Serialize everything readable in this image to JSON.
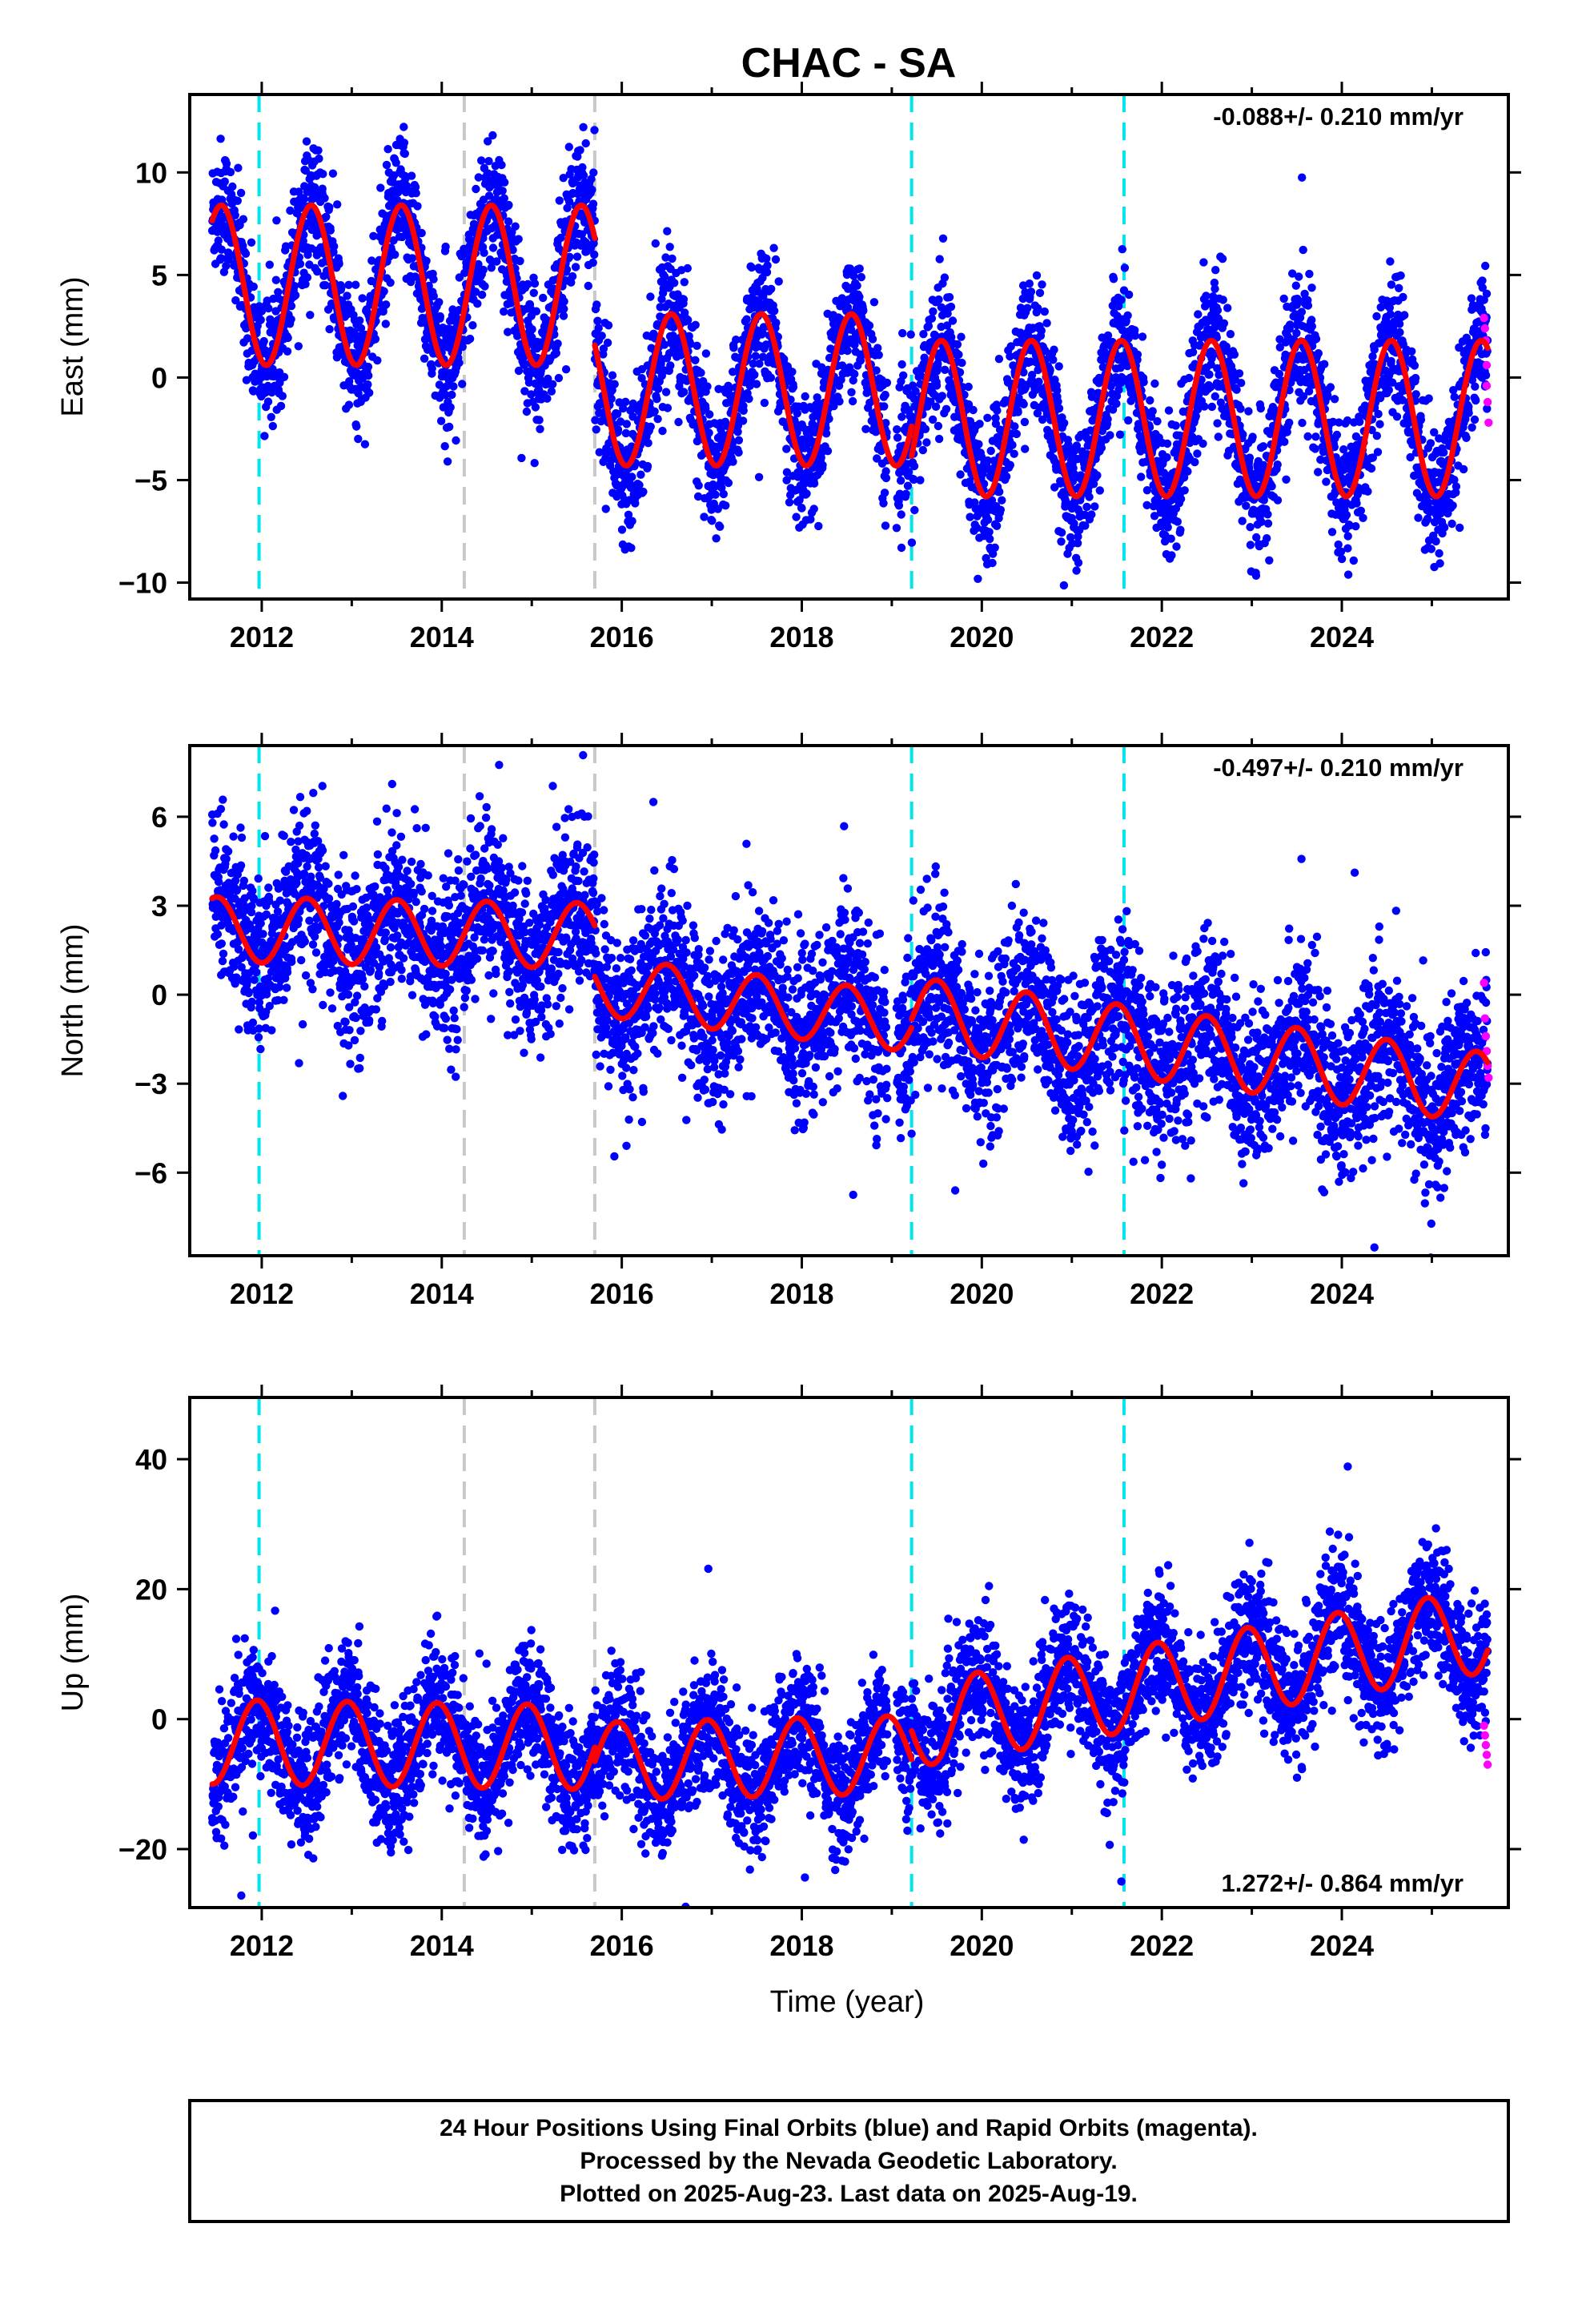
{
  "chart_data": {
    "type": "scatter",
    "title": "CHAC - SA",
    "xlabel": "Time (year)",
    "xlim": [
      2011.2,
      2025.85
    ],
    "x_ticks": [
      "2012",
      "2014",
      "2016",
      "2018",
      "2020",
      "2022",
      "2024"
    ],
    "x_tick_values": [
      2012,
      2014,
      2016,
      2018,
      2020,
      2022,
      2024
    ],
    "colors": {
      "final_orbits": "#0000ff",
      "rapid_orbits": "#ff00ff",
      "model": "#ff0000",
      "equipment_change": "#00e5ee",
      "antenna_change": "#c8c8c8"
    },
    "event_lines": {
      "cyan": [
        2011.97,
        2019.22,
        2021.58
      ],
      "gray": [
        2014.25,
        2015.7
      ]
    },
    "panels": [
      {
        "name": "east",
        "ylabel": "East (mm)",
        "ylim": [
          -10.8,
          13.8
        ],
        "y_ticks": [
          "10",
          "5",
          "0",
          "−5",
          "−10"
        ],
        "y_tick_values": [
          10,
          5,
          0,
          -5,
          -10
        ],
        "rate_text": "-0.088+/- 0.210 mm/yr",
        "rate_position": "top-right",
        "model": {
          "segments": [
            {
              "start": 2011.45,
              "end": 2015.7,
              "offset": 4.5,
              "trend": 0.0,
              "amp": 3.9,
              "phase_peak": 0.55
            },
            {
              "start": 2015.7,
              "end": 2019.22,
              "offset": -0.6,
              "trend": 0.0,
              "amp": 3.7,
              "phase_peak": 0.55
            },
            {
              "start": 2019.22,
              "end": 2025.62,
              "offset": -2.0,
              "trend": 0.0,
              "amp": 3.8,
              "phase_peak": 0.55
            }
          ]
        },
        "scatter_sigma": 1.6,
        "rapid_points": [
          [
            2025.58,
            2.9
          ],
          [
            2025.59,
            2.4
          ],
          [
            2025.6,
            1.8
          ],
          [
            2025.61,
            0.6
          ],
          [
            2025.61,
            -0.4
          ],
          [
            2025.62,
            -1.2
          ],
          [
            2025.63,
            -2.2
          ]
        ]
      },
      {
        "name": "north",
        "ylabel": "North (mm)",
        "ylim": [
          -8.8,
          8.4
        ],
        "y_ticks": [
          "6",
          "3",
          "0",
          "−3",
          "−6"
        ],
        "y_tick_values": [
          6,
          3,
          0,
          -3,
          -6
        ],
        "rate_text": "-0.497+/- 0.210 mm/yr",
        "rate_position": "top-right",
        "model": {
          "segments": [
            {
              "start": 2011.45,
              "end": 2015.7,
              "offset": 2.2,
              "trend": -0.05,
              "amp": 1.1,
              "phase_peak": 0.5
            },
            {
              "start": 2015.7,
              "end": 2019.22,
              "offset": 0.3,
              "trend": -0.35,
              "amp": 1.0,
              "phase_peak": 0.5
            },
            {
              "start": 2019.22,
              "end": 2025.62,
              "offset": -0.6,
              "trend": -0.4,
              "amp": 1.2,
              "phase_peak": 0.5
            }
          ]
        },
        "scatter_sigma": 1.4,
        "rapid_points": [
          [
            2025.58,
            0.4
          ],
          [
            2025.59,
            -0.8
          ],
          [
            2025.6,
            -1.4
          ],
          [
            2025.61,
            -1.9
          ],
          [
            2025.62,
            -2.4
          ],
          [
            2025.63,
            -2.8
          ]
        ]
      },
      {
        "name": "up",
        "ylabel": "Up (mm)",
        "ylim": [
          -29,
          49.5
        ],
        "y_ticks": [
          "40",
          "20",
          "0",
          "−20"
        ],
        "y_tick_values": [
          40,
          20,
          0,
          -20
        ],
        "rate_text": "1.272+/- 0.864 mm/yr",
        "rate_position": "bottom-right",
        "model": {
          "segments": [
            {
              "start": 2011.45,
              "end": 2015.7,
              "offset": -3.5,
              "trend": -0.2,
              "amp": 6.5,
              "phase_peak": 0.95
            },
            {
              "start": 2015.7,
              "end": 2019.22,
              "offset": -6.5,
              "trend": 0.3,
              "amp": 6.0,
              "phase_peak": 0.95
            },
            {
              "start": 2019.22,
              "end": 2025.62,
              "offset": -1.0,
              "trend": 2.3,
              "amp": 6.5,
              "phase_peak": 0.95
            }
          ]
        },
        "scatter_sigma": 4.8,
        "rapid_points": [
          [
            2025.58,
            -1.0
          ],
          [
            2025.59,
            -2.5
          ],
          [
            2025.6,
            -4.0
          ],
          [
            2025.61,
            -5.5
          ],
          [
            2025.62,
            -7.0
          ]
        ]
      }
    ]
  },
  "footer": {
    "line1": "24 Hour Positions Using Final Orbits (blue) and Rapid Orbits (magenta).",
    "line2": "Processed by the Nevada Geodetic Laboratory.",
    "line3": "Plotted on 2025-Aug-23. Last data on 2025-Aug-19."
  }
}
